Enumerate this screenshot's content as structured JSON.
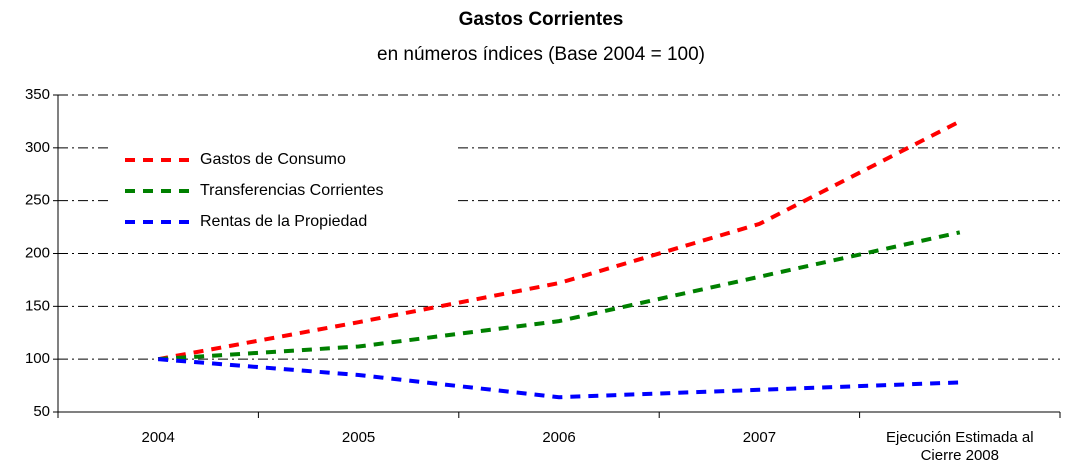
{
  "chart_data": {
    "type": "line",
    "title": "Gastos Corrientes",
    "subtitle": "en números índices (Base 2004 = 100)",
    "categories": [
      "2004",
      "2005",
      "2006",
      "2007",
      "Ejecución Estimada al Cierre 2008"
    ],
    "series": [
      {
        "name": "Gastos de Consumo",
        "color": "#ff0000",
        "values": [
          100,
          135,
          172,
          228,
          325
        ]
      },
      {
        "name": "Transferencias Corrientes",
        "color": "#008000",
        "values": [
          100,
          112,
          136,
          178,
          220
        ]
      },
      {
        "name": "Rentas de la Propiedad",
        "color": "#0000ff",
        "values": [
          100,
          85,
          64,
          71,
          78
        ]
      }
    ],
    "ylim": [
      50,
      350
    ],
    "yticks": [
      50,
      100,
      150,
      200,
      250,
      300,
      350
    ],
    "grid": true,
    "legend": "upper left"
  }
}
